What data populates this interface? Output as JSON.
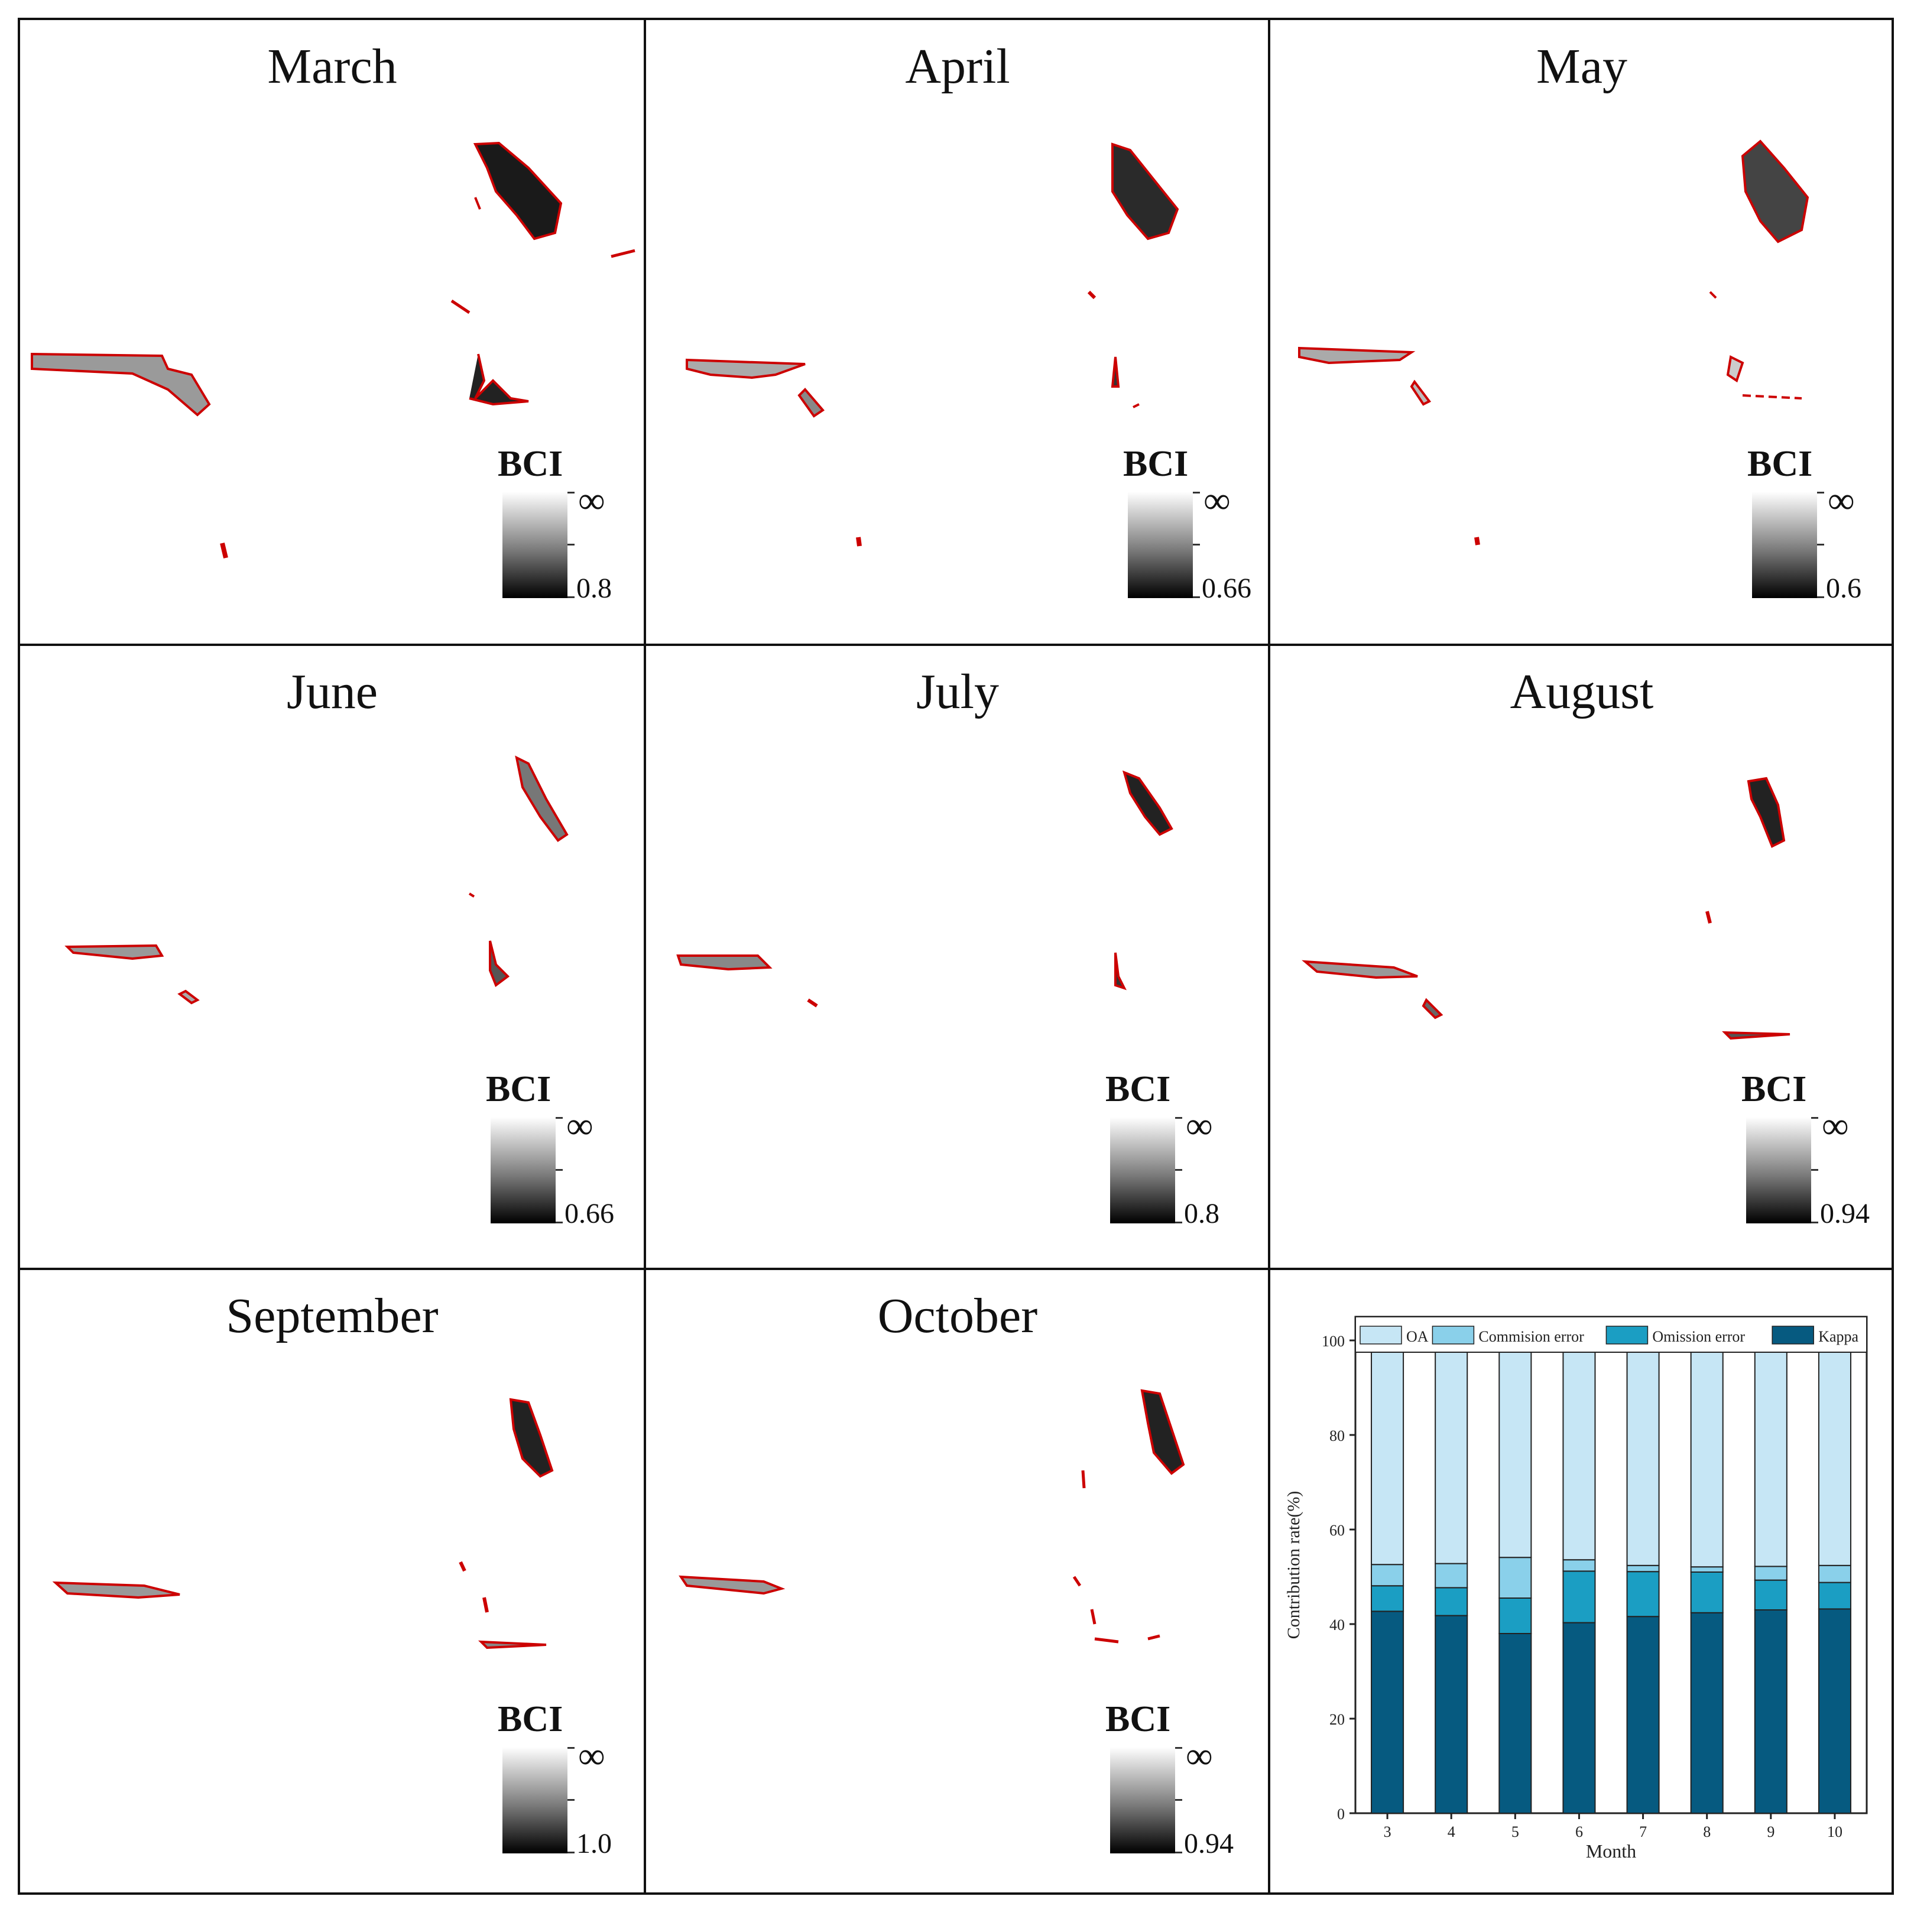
{
  "panels": [
    {
      "title": "March",
      "legend_label": "BCI",
      "max_label": "∞",
      "min_label": "0.8"
    },
    {
      "title": "April",
      "legend_label": "BCI",
      "max_label": "∞",
      "min_label": "0.66"
    },
    {
      "title": "May",
      "legend_label": "BCI",
      "max_label": "∞",
      "min_label": "0.6"
    },
    {
      "title": "June",
      "legend_label": "BCI",
      "max_label": "∞",
      "min_label": "0.66"
    },
    {
      "title": "July",
      "legend_label": "BCI",
      "max_label": "∞",
      "min_label": "0.8"
    },
    {
      "title": "August",
      "legend_label": "BCI",
      "max_label": "∞",
      "min_label": "0.94"
    },
    {
      "title": "September",
      "legend_label": "BCI",
      "max_label": "∞",
      "min_label": "1.0"
    },
    {
      "title": "October",
      "legend_label": "BCI",
      "max_label": "∞",
      "min_label": "0.94"
    }
  ],
  "colors": {
    "OA": "#c6e6f5",
    "Commision error": "#8ad0ea",
    "Omission error": "#1b9ec3",
    "Kappa": "#065a80",
    "outline": "#cc0000"
  },
  "chart_data": {
    "type": "bar",
    "stacked": true,
    "categories": [
      "3",
      "4",
      "5",
      "6",
      "7",
      "8",
      "9",
      "10"
    ],
    "series": [
      {
        "name": "Kappa",
        "values": [
          42.7,
          41.8,
          38.0,
          40.3,
          41.6,
          42.4,
          43.0,
          43.2
        ]
      },
      {
        "name": "Omission error",
        "values": [
          5.4,
          5.9,
          7.5,
          10.9,
          9.5,
          8.6,
          6.3,
          5.6
        ]
      },
      {
        "name": "Commision error",
        "values": [
          4.5,
          5.1,
          8.6,
          2.4,
          1.3,
          1.1,
          2.9,
          3.6
        ]
      },
      {
        "name": "OA",
        "values": [
          47.4,
          47.2,
          45.9,
          46.4,
          47.6,
          47.9,
          47.8,
          47.6
        ]
      }
    ],
    "legend_order": [
      "OA",
      "Commision error",
      "Omission error",
      "Kappa"
    ],
    "xlabel": "Month",
    "ylabel": "Contribution rate(%)",
    "ylim": [
      0,
      105
    ],
    "yticks": [
      0,
      20,
      40,
      60,
      80,
      100
    ],
    "legend_position": "top"
  }
}
